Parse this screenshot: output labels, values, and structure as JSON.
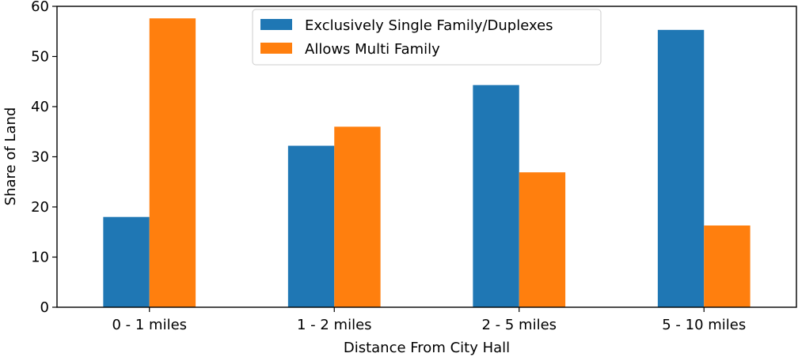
{
  "chart_data": {
    "type": "bar",
    "xlabel": "Distance From City Hall",
    "ylabel": "Share of Land",
    "categories": [
      "0 - 1 miles",
      "1 - 2 miles",
      "2 - 5 miles",
      "5 - 10 miles"
    ],
    "series": [
      {
        "name": "Exclusively Single Family/Duplexes",
        "color": "#1f77b4",
        "values": [
          18.0,
          32.2,
          44.3,
          55.3
        ]
      },
      {
        "name": "Allows Multi Family",
        "color": "#ff7f0e",
        "values": [
          57.6,
          36.0,
          26.9,
          16.3
        ]
      }
    ],
    "ylim": [
      0,
      60
    ],
    "yticks": [
      "0",
      "10",
      "20",
      "30",
      "40",
      "50",
      "60"
    ],
    "grid": false,
    "legend_position": "top-center"
  }
}
